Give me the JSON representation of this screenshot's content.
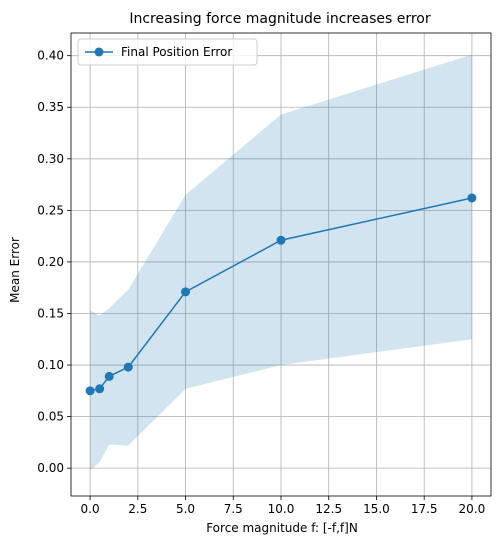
{
  "chart_data": {
    "type": "line",
    "title": "Increasing force magnitude increases error",
    "xlabel": "Force magnitude f: [-f,f]N",
    "ylabel": "Mean Error",
    "xlim": [
      -1.0,
      21.0
    ],
    "ylim": [
      -0.027,
      0.422
    ],
    "xticks": [
      0.0,
      2.5,
      5.0,
      7.5,
      10.0,
      12.5,
      15.0,
      17.5,
      20.0
    ],
    "xtick_labels": [
      "0.0",
      "2.5",
      "5.0",
      "7.5",
      "10.0",
      "12.5",
      "15.0",
      "17.5",
      "20.0"
    ],
    "yticks": [
      0.0,
      0.05,
      0.1,
      0.15,
      0.2,
      0.25,
      0.3,
      0.35,
      0.4
    ],
    "ytick_labels": [
      "0.00",
      "0.05",
      "0.10",
      "0.15",
      "0.20",
      "0.25",
      "0.30",
      "0.35",
      "0.40"
    ],
    "grid": true,
    "legend_position": "top-left",
    "series": [
      {
        "name": "Final Position Error",
        "color": "#1f77b4",
        "band_color": "#1f77b4",
        "x": [
          0,
          0.5,
          1,
          2,
          5,
          10,
          20
        ],
        "y": [
          0.075,
          0.077,
          0.089,
          0.098,
          0.171,
          0.221,
          0.262
        ],
        "upper": [
          0.153,
          0.148,
          0.155,
          0.173,
          0.265,
          0.343,
          0.401
        ],
        "lower": [
          -0.002,
          0.006,
          0.023,
          0.022,
          0.077,
          0.1,
          0.125
        ]
      }
    ]
  }
}
